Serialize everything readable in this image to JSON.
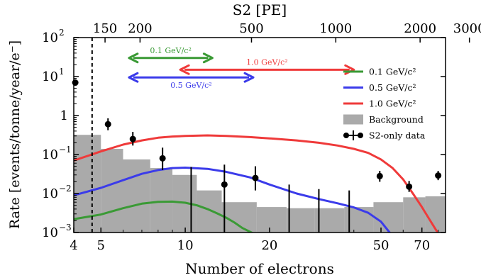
{
  "chart_data": {
    "type": "line",
    "xlabel": "Number of electrons",
    "ylabel": "Rate [events/tonne/year/e⁻]",
    "top_xlabel": "S2 [PE]",
    "xscale": "log",
    "yscale": "log",
    "xlim": [
      4,
      85
    ],
    "ylim": [
      0.001,
      100
    ],
    "x_ticks": [
      {
        "value": 4,
        "label": "4"
      },
      {
        "value": 5,
        "label": "5"
      },
      {
        "value": 10,
        "label": "10"
      },
      {
        "value": 20,
        "label": "20"
      },
      {
        "value": 50,
        "label": "50"
      },
      {
        "value": 70,
        "label": "70"
      }
    ],
    "top_ticks": [
      {
        "value": 150,
        "label": "150"
      },
      {
        "value": 200,
        "label": "200"
      },
      {
        "value": 500,
        "label": "500"
      },
      {
        "value": 1000,
        "label": "1000"
      },
      {
        "value": 2000,
        "label": "2000"
      },
      {
        "value": 3000,
        "label": "3000"
      }
    ],
    "y_ticks": [
      {
        "value": 100,
        "label": "10",
        "exp": "2"
      },
      {
        "value": 10,
        "label": "10",
        "exp": "1"
      },
      {
        "value": 1,
        "label": "1",
        "exp": ""
      },
      {
        "value": 0.1,
        "label": "10",
        "exp": "−1"
      },
      {
        "value": 0.01,
        "label": "10",
        "exp": "−2"
      },
      {
        "value": 0.001,
        "label": "10",
        "exp": "−3"
      }
    ],
    "threshold_x": 4.65,
    "series": [
      {
        "name": "0.1 GeV/c²",
        "color": "#3a9a35",
        "x": [
          4.0,
          5.0,
          6.0,
          7.0,
          8.0,
          9.0,
          10.0,
          11.0,
          12.0,
          13.0,
          14.0,
          15.0,
          16.0,
          17.5
        ],
        "y": [
          0.0022,
          0.0029,
          0.0042,
          0.0055,
          0.0061,
          0.0062,
          0.0058,
          0.005,
          0.004,
          0.0031,
          0.0024,
          0.0018,
          0.0013,
          0.00095
        ]
      },
      {
        "name": "0.5 GeV/c²",
        "color": "#3b3bea",
        "x": [
          4.0,
          5.0,
          6.0,
          7.0,
          8.0,
          9.0,
          10.0,
          12.0,
          14.0,
          17.0,
          20.0,
          25.0,
          30.0,
          35.0,
          40.0,
          45.0,
          50.0,
          54.0
        ],
        "y": [
          0.009,
          0.014,
          0.022,
          0.032,
          0.04,
          0.045,
          0.046,
          0.043,
          0.036,
          0.026,
          0.017,
          0.01,
          0.0072,
          0.0056,
          0.0044,
          0.0032,
          0.0019,
          0.00095
        ]
      },
      {
        "name": "1.0 GeV/c²",
        "color": "#ef3a3a",
        "x": [
          4.0,
          5.0,
          6.0,
          7.0,
          8.0,
          9.0,
          10.0,
          12.0,
          14.0,
          17.0,
          20.0,
          25.0,
          30.0,
          35.0,
          40.0,
          45.0,
          50.0,
          55.0,
          60.0,
          65.0,
          70.0,
          75.0,
          80.0
        ],
        "y": [
          0.07,
          0.12,
          0.18,
          0.23,
          0.27,
          0.29,
          0.3,
          0.31,
          0.3,
          0.28,
          0.26,
          0.23,
          0.2,
          0.17,
          0.14,
          0.11,
          0.075,
          0.045,
          0.023,
          0.01,
          0.0045,
          0.002,
          0.00095
        ]
      }
    ],
    "background": {
      "name": "Background",
      "color": "#aaaaaa",
      "bins": [
        {
          "x0": 4.0,
          "x1": 5.0,
          "y": 0.32
        },
        {
          "x0": 5.0,
          "x1": 6.0,
          "y": 0.14
        },
        {
          "x0": 6.0,
          "x1": 7.5,
          "y": 0.075
        },
        {
          "x0": 7.5,
          "x1": 9.0,
          "y": 0.045
        },
        {
          "x0": 9.0,
          "x1": 11.0,
          "y": 0.03
        },
        {
          "x0": 11.0,
          "x1": 13.5,
          "y": 0.012
        },
        {
          "x0": 13.5,
          "x1": 18.0,
          "y": 0.006
        },
        {
          "x0": 18.0,
          "x1": 23.0,
          "y": 0.0045
        },
        {
          "x0": 23.0,
          "x1": 29.0,
          "y": 0.0042
        },
        {
          "x0": 29.0,
          "x1": 37.0,
          "y": 0.0042
        },
        {
          "x0": 37.0,
          "x1": 47.0,
          "y": 0.0045
        },
        {
          "x0": 47.0,
          "x1": 60.0,
          "y": 0.006
        },
        {
          "x0": 60.0,
          "x1": 72.0,
          "y": 0.008
        },
        {
          "x0": 72.0,
          "x1": 85.0,
          "y": 0.0085
        }
      ]
    },
    "data_points": {
      "name": "S2-only data",
      "points": [
        {
          "x": 4.05,
          "y": 7.0,
          "lo": 7.0,
          "hi": 7.0
        },
        {
          "x": 5.3,
          "y": 0.6,
          "lo": 0.42,
          "hi": 0.85
        },
        {
          "x": 6.5,
          "y": 0.25,
          "lo": 0.17,
          "hi": 0.38
        },
        {
          "x": 8.3,
          "y": 0.08,
          "lo": 0.04,
          "hi": 0.15
        },
        {
          "x": 10.5,
          "y": 0.001,
          "lo": 0.001,
          "hi": 0.048
        },
        {
          "x": 13.8,
          "y": 0.017,
          "lo": 0.001,
          "hi": 0.055
        },
        {
          "x": 17.8,
          "y": 0.025,
          "lo": 0.012,
          "hi": 0.05
        },
        {
          "x": 23.5,
          "y": 0.001,
          "lo": 0.001,
          "hi": 0.017
        },
        {
          "x": 30.0,
          "y": 0.001,
          "lo": 0.001,
          "hi": 0.013
        },
        {
          "x": 38.5,
          "y": 0.001,
          "lo": 0.001,
          "hi": 0.012
        },
        {
          "x": 49.5,
          "y": 0.028,
          "lo": 0.02,
          "hi": 0.038
        },
        {
          "x": 63.0,
          "y": 0.015,
          "lo": 0.011,
          "hi": 0.021
        },
        {
          "x": 80.0,
          "y": 0.029,
          "lo": 0.022,
          "hi": 0.038
        }
      ]
    },
    "annotations": [
      {
        "text": "0.1 GeV/c²",
        "color": "#3a9a35",
        "x0": 6.3,
        "x1": 12.5,
        "y": 30
      },
      {
        "text": "1.0 GeV/c²",
        "color": "#ef3a3a",
        "x0": 9.6,
        "x1": 40.0,
        "y": 15
      },
      {
        "text": "0.5 GeV/c²",
        "color": "#3b3bea",
        "x0": 6.3,
        "x1": 17.5,
        "y": 9.5
      }
    ],
    "legend": {
      "position": "top-right",
      "entries": [
        {
          "kind": "line",
          "text": "0.1 GeV/c²",
          "color": "#3a9a35"
        },
        {
          "kind": "line",
          "text": "0.5 GeV/c²",
          "color": "#3b3bea"
        },
        {
          "kind": "line",
          "text": "1.0 GeV/c²",
          "color": "#ef3a3a"
        },
        {
          "kind": "patch",
          "text": "Background",
          "color": "#aaaaaa"
        },
        {
          "kind": "errorbar",
          "text": "S2-only data",
          "color": "#000000"
        }
      ]
    }
  }
}
